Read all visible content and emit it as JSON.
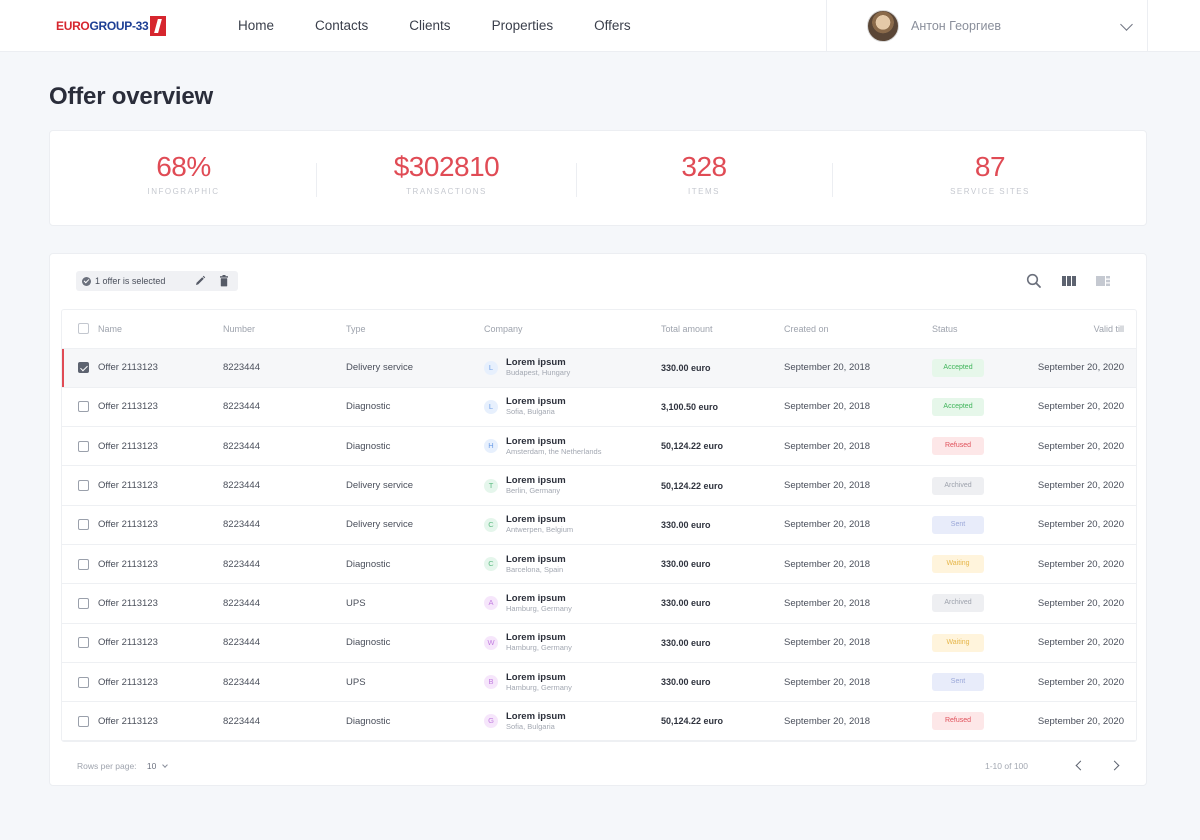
{
  "brand": {
    "logo_part_a": "EURO",
    "logo_part_b": "GROUP-33"
  },
  "nav": [
    "Home",
    "Contacts",
    "Clients",
    "Properties",
    "Offers"
  ],
  "user": {
    "name": "Антон Георгиев"
  },
  "page_title": "Offer overview",
  "stats": [
    {
      "value": "68%",
      "label": "INFOGRAPHIC"
    },
    {
      "value": "$302810",
      "label": "TRANSACTIONS"
    },
    {
      "value": "328",
      "label": "ITEMS"
    },
    {
      "value": "87",
      "label": "SERVICE SITES"
    }
  ],
  "selection": {
    "text": "1 offer is selected"
  },
  "table": {
    "columns": [
      "Name",
      "Number",
      "Type",
      "Company",
      "Total amount",
      "Created on",
      "Status",
      "Valid till"
    ],
    "rows": [
      {
        "checked": true,
        "name": "Offer 2113123",
        "number": "8223444",
        "type": "Delivery service",
        "initial": "L",
        "company": "Lorem ipsum",
        "location": "Budapest, Hungary",
        "amount": "330.00 euro",
        "created": "September  20, 2018",
        "status": "Accepted",
        "valid": "September  20, 2020"
      },
      {
        "checked": false,
        "name": "Offer 2113123",
        "number": "8223444",
        "type": "Diagnostic",
        "initial": "L",
        "company": "Lorem ipsum",
        "location": "Sofia, Bulgaria",
        "amount": "3,100.50 euro",
        "created": "September  20, 2018",
        "status": "Accepted",
        "valid": "September  20, 2020"
      },
      {
        "checked": false,
        "name": "Offer 2113123",
        "number": "8223444",
        "type": "Diagnostic",
        "initial": "H",
        "company": "Lorem ipsum",
        "location": "Amsterdam, the Netherlands",
        "amount": "50,124.22 euro",
        "created": "September  20, 2018",
        "status": "Refused",
        "valid": "September  20, 2020"
      },
      {
        "checked": false,
        "name": "Offer 2113123",
        "number": "8223444",
        "type": "Delivery service",
        "initial": "T",
        "company": "Lorem ipsum",
        "location": "Berlin, Germany",
        "amount": "50,124.22 euro",
        "created": "September  20, 2018",
        "status": "Archived",
        "valid": "September  20, 2020"
      },
      {
        "checked": false,
        "name": "Offer 2113123",
        "number": "8223444",
        "type": "Delivery service",
        "initial": "C",
        "company": "Lorem ipsum",
        "location": "Antwerpen, Belgium",
        "amount": "330.00 euro",
        "created": "September  20, 2018",
        "status": "Sent",
        "valid": "September  20, 2020"
      },
      {
        "checked": false,
        "name": "Offer 2113123",
        "number": "8223444",
        "type": "Diagnostic",
        "initial": "C",
        "company": "Lorem ipsum",
        "location": "Barcelona, Spain",
        "amount": "330.00 euro",
        "created": "September  20, 2018",
        "status": "Waiting",
        "valid": "September  20, 2020"
      },
      {
        "checked": false,
        "name": "Offer 2113123",
        "number": "8223444",
        "type": "UPS",
        "initial": "A",
        "company": "Lorem ipsum",
        "location": "Hamburg, Germany",
        "amount": "330.00 euro",
        "created": "September  20, 2018",
        "status": "Archived",
        "valid": "September  20, 2020"
      },
      {
        "checked": false,
        "name": "Offer 2113123",
        "number": "8223444",
        "type": "Diagnostic",
        "initial": "W",
        "company": "Lorem ipsum",
        "location": "Hamburg, Germany",
        "amount": "330.00 euro",
        "created": "September  20, 2018",
        "status": "Waiting",
        "valid": "September  20, 2020"
      },
      {
        "checked": false,
        "name": "Offer 2113123",
        "number": "8223444",
        "type": "UPS",
        "initial": "B",
        "company": "Lorem ipsum",
        "location": "Hamburg, Germany",
        "amount": "330.00 euro",
        "created": "September  20, 2018",
        "status": "Sent",
        "valid": "September  20, 2020"
      },
      {
        "checked": false,
        "name": "Offer 2113123",
        "number": "8223444",
        "type": "Diagnostic",
        "initial": "G",
        "company": "Lorem ipsum",
        "location": "Sofia, Bulgaria",
        "amount": "50,124.22 euro",
        "created": "September  20, 2018",
        "status": "Refused",
        "valid": "September  20, 2020"
      }
    ]
  },
  "status_colors": {
    "Accepted": {
      "bg": "#e6f7ea",
      "fg": "#3fb45a"
    },
    "Refused": {
      "bg": "#fde7e8",
      "fg": "#e0505a"
    },
    "Archived": {
      "bg": "#eeeff2",
      "fg": "#9da2ac"
    },
    "Sent": {
      "bg": "#e8ecfa",
      "fg": "#9aa7d8"
    },
    "Waiting": {
      "bg": "#fff4dc",
      "fg": "#e6b64a"
    }
  },
  "initial_colors": {
    "L": {
      "bg": "#e7f0fd",
      "fg": "#6d9de6"
    },
    "H": {
      "bg": "#e7f0fd",
      "fg": "#6d9de6"
    },
    "T": {
      "bg": "#e5f6ec",
      "fg": "#5dbb82"
    },
    "C": {
      "bg": "#e5f6ec",
      "fg": "#5dbb82"
    },
    "A": {
      "bg": "#f6e6fb",
      "fg": "#c27ee0"
    },
    "W": {
      "bg": "#f6e6fb",
      "fg": "#c27ee0"
    },
    "B": {
      "bg": "#f6e6fb",
      "fg": "#c27ee0"
    },
    "G": {
      "bg": "#f6e6fb",
      "fg": "#c27ee0"
    }
  },
  "accent_color": "#e04b55",
  "pagination": {
    "rows_per_page_label": "Rows per page:",
    "rows_per_page": "10",
    "range": "1-10 of 100"
  },
  "icons": [
    "check-circle-icon",
    "pencil-icon",
    "trash-icon",
    "search-icon",
    "grid-view-icon",
    "list-view-icon",
    "chevron-down-icon",
    "chevron-left-icon",
    "chevron-right-icon"
  ]
}
